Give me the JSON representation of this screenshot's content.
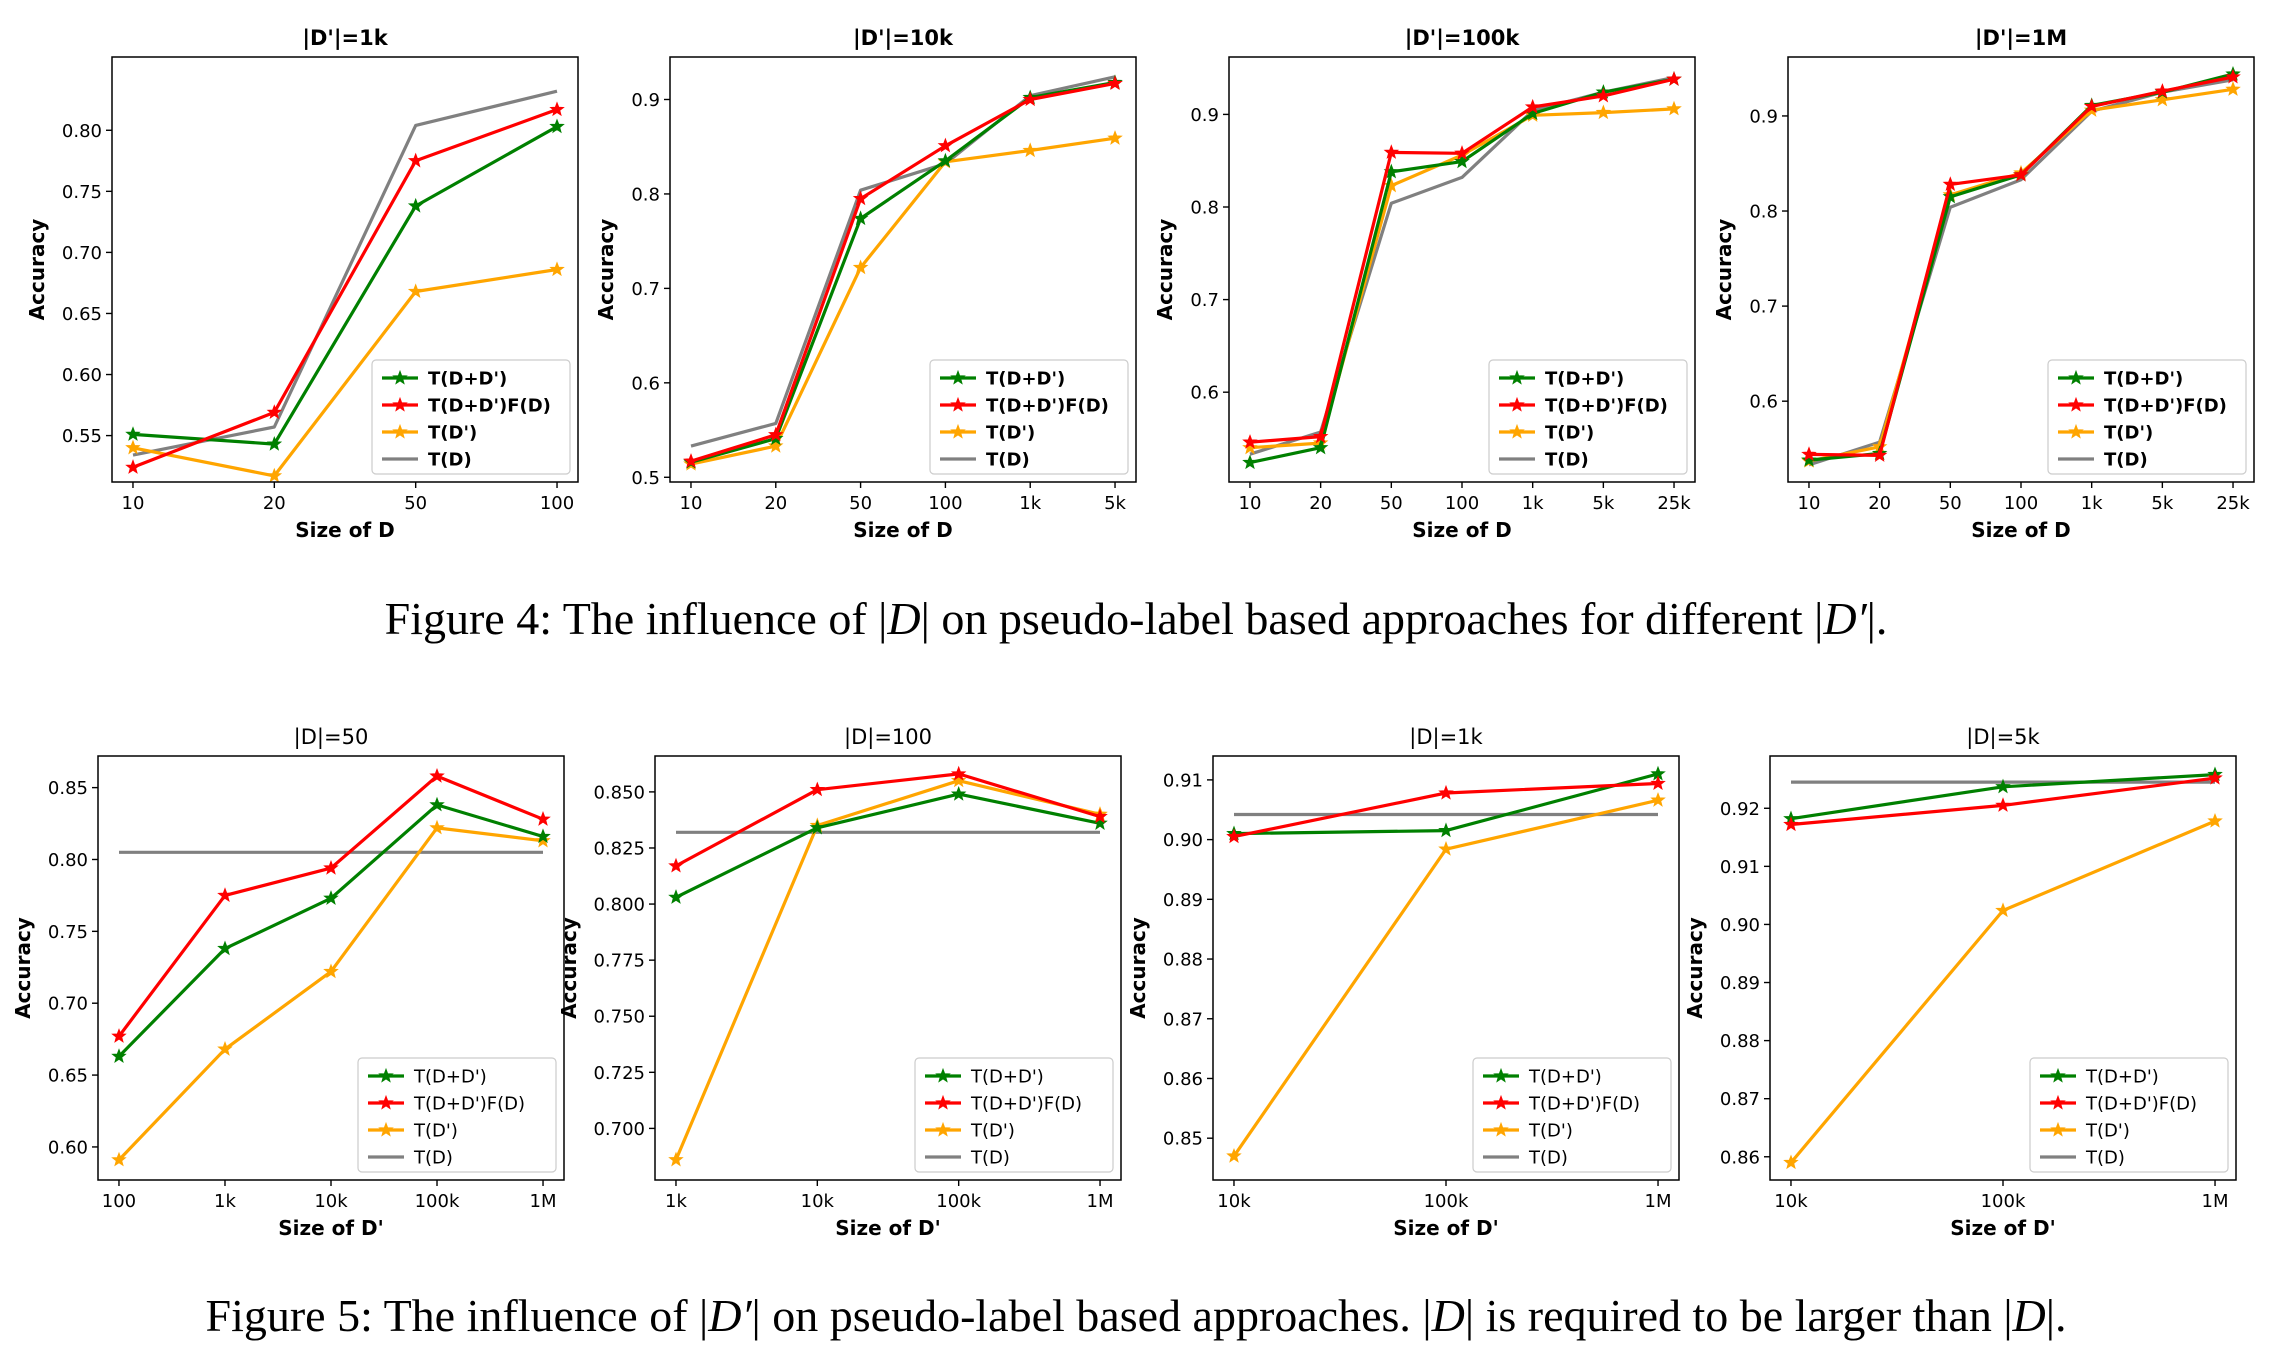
{
  "styles": {
    "colors": {
      "T(D+D')": "#008000",
      "T(D+D')F(D)": "#ff0000",
      "T(D')": "#ffa500",
      "T(D)": "#808080"
    },
    "marker": "star",
    "legend_loc": "lower-right"
  },
  "captions": {
    "fig4": {
      "lead": "Figure 4: ",
      "t1": "The influence of |",
      "v1": "D",
      "t2": "| on pseudo-label based approaches for different |",
      "v2": "D′",
      "t3": "|."
    },
    "fig5": {
      "lead": "Figure 5: ",
      "t1": "The influence of |",
      "v1": "D′",
      "t2": "| on pseudo-label based approaches. |",
      "v2": "D",
      "t3": "| is required to be larger than |",
      "v3": "D",
      "t4": "|."
    }
  },
  "chart_data": [
    {
      "type": "line",
      "title": "|D'|=1k",
      "title_bold": true,
      "xlabel": "Size of D",
      "ylabel": "Accuracy",
      "categories": [
        "10",
        "20",
        "50",
        "100"
      ],
      "ylim": [
        0.512,
        0.86
      ],
      "yticks": [
        "0.55",
        "0.60",
        "0.65",
        "0.70",
        "0.75",
        "0.80"
      ],
      "series": [
        {
          "name": "T(D+D')",
          "values": [
            0.551,
            0.543,
            0.738,
            0.803
          ]
        },
        {
          "name": "T(D+D')F(D)",
          "values": [
            0.524,
            0.569,
            0.775,
            0.817
          ]
        },
        {
          "name": "T(D')",
          "values": [
            0.54,
            0.517,
            0.668,
            0.686
          ]
        },
        {
          "name": "T(D)",
          "values": [
            0.534,
            0.557,
            0.804,
            0.832
          ]
        }
      ]
    },
    {
      "type": "line",
      "title": "|D'|=10k",
      "title_bold": true,
      "xlabel": "Size of D",
      "ylabel": "Accuracy",
      "categories": [
        "10",
        "20",
        "50",
        "100",
        "1k",
        "5k"
      ],
      "ylim": [
        0.495,
        0.945
      ],
      "yticks": [
        "0.5",
        "0.6",
        "0.7",
        "0.8",
        "0.9"
      ],
      "series": [
        {
          "name": "T(D+D')",
          "values": [
            0.516,
            0.541,
            0.774,
            0.835,
            0.902,
            0.918
          ]
        },
        {
          "name": "T(D+D')F(D)",
          "values": [
            0.517,
            0.545,
            0.795,
            0.851,
            0.9,
            0.917
          ]
        },
        {
          "name": "T(D')",
          "values": [
            0.514,
            0.533,
            0.722,
            0.834,
            0.846,
            0.859
          ]
        },
        {
          "name": "T(D)",
          "values": [
            0.533,
            0.557,
            0.804,
            0.832,
            0.904,
            0.924
          ]
        }
      ]
    },
    {
      "type": "line",
      "title": "|D'|=100k",
      "title_bold": true,
      "xlabel": "Size of D",
      "ylabel": "Accuracy",
      "categories": [
        "10",
        "20",
        "50",
        "100",
        "1k",
        "5k",
        "25k"
      ],
      "ylim": [
        0.503,
        0.962
      ],
      "yticks": [
        "0.6",
        "0.7",
        "0.8",
        "0.9"
      ],
      "series": [
        {
          "name": "T(D+D')",
          "values": [
            0.524,
            0.54,
            0.838,
            0.849,
            0.901,
            0.924,
            0.938
          ]
        },
        {
          "name": "T(D+D')F(D)",
          "values": [
            0.546,
            0.552,
            0.859,
            0.858,
            0.908,
            0.92,
            0.938
          ]
        },
        {
          "name": "T(D')",
          "values": [
            0.54,
            0.545,
            0.823,
            0.856,
            0.899,
            0.902,
            0.906
          ]
        },
        {
          "name": "T(D)",
          "values": [
            0.533,
            0.557,
            0.804,
            0.832,
            0.904,
            0.924,
            0.94
          ]
        }
      ]
    },
    {
      "type": "line",
      "title": "|D'|=1M",
      "title_bold": true,
      "xlabel": "Size of D",
      "ylabel": "Accuracy",
      "categories": [
        "10",
        "20",
        "50",
        "100",
        "1k",
        "5k",
        "25k"
      ],
      "ylim": [
        0.515,
        0.962
      ],
      "yticks": [
        "0.6",
        "0.7",
        "0.8",
        "0.9"
      ],
      "series": [
        {
          "name": "T(D+D')",
          "values": [
            0.538,
            0.545,
            0.815,
            0.838,
            0.911,
            0.925,
            0.944
          ]
        },
        {
          "name": "T(D+D')F(D)",
          "values": [
            0.544,
            0.543,
            0.828,
            0.838,
            0.91,
            0.926,
            0.941
          ]
        },
        {
          "name": "T(D')",
          "values": [
            0.537,
            0.552,
            0.817,
            0.84,
            0.906,
            0.917,
            0.928
          ]
        },
        {
          "name": "T(D)",
          "values": [
            0.533,
            0.557,
            0.804,
            0.833,
            0.905,
            0.925,
            0.938
          ]
        }
      ]
    },
    {
      "type": "line",
      "title": "|D|=50",
      "title_bold": false,
      "xlabel": "Size of D'",
      "ylabel": "Accuracy",
      "categories": [
        "100",
        "1k",
        "10k",
        "100k",
        "1M"
      ],
      "ylim": [
        0.577,
        0.872
      ],
      "yticks": [
        "0.60",
        "0.65",
        "0.70",
        "0.75",
        "0.80",
        "0.85"
      ],
      "series": [
        {
          "name": "T(D+D')",
          "values": [
            0.663,
            0.738,
            0.773,
            0.838,
            0.816
          ]
        },
        {
          "name": "T(D+D')F(D)",
          "values": [
            0.677,
            0.775,
            0.794,
            0.858,
            0.828
          ]
        },
        {
          "name": "T(D')",
          "values": [
            0.591,
            0.668,
            0.722,
            0.822,
            0.813
          ]
        },
        {
          "name": "T(D)",
          "values": [
            0.805,
            0.805,
            0.805,
            0.805,
            0.805
          ]
        }
      ]
    },
    {
      "type": "line",
      "title": "|D|=100",
      "title_bold": false,
      "xlabel": "Size of D'",
      "ylabel": "Accuracy",
      "categories": [
        "1k",
        "10k",
        "100k",
        "1M"
      ],
      "ylim": [
        0.677,
        0.866
      ],
      "yticks": [
        "0.700",
        "0.725",
        "0.750",
        "0.775",
        "0.800",
        "0.825",
        "0.850"
      ],
      "series": [
        {
          "name": "T(D+D')",
          "values": [
            0.803,
            0.834,
            0.849,
            0.836
          ]
        },
        {
          "name": "T(D+D')F(D)",
          "values": [
            0.817,
            0.851,
            0.858,
            0.839
          ]
        },
        {
          "name": "T(D')",
          "values": [
            0.686,
            0.835,
            0.855,
            0.84
          ]
        },
        {
          "name": "T(D)",
          "values": [
            0.832,
            0.832,
            0.832,
            0.832
          ]
        }
      ]
    },
    {
      "type": "line",
      "title": "|D|=1k",
      "title_bold": false,
      "xlabel": "Size of D'",
      "ylabel": "Accuracy",
      "categories": [
        "10k",
        "100k",
        "1M"
      ],
      "ylim": [
        0.843,
        0.914
      ],
      "yticks": [
        "0.85",
        "0.86",
        "0.87",
        "0.88",
        "0.89",
        "0.90",
        "0.91"
      ],
      "series": [
        {
          "name": "T(D+D')",
          "values": [
            0.901,
            0.9015,
            0.911
          ]
        },
        {
          "name": "T(D+D')F(D)",
          "values": [
            0.9005,
            0.9078,
            0.9094
          ]
        },
        {
          "name": "T(D')",
          "values": [
            0.847,
            0.8984,
            0.9066
          ]
        },
        {
          "name": "T(D)",
          "values": [
            0.9042,
            0.9042,
            0.9042
          ]
        }
      ]
    },
    {
      "type": "line",
      "title": "|D|=5k",
      "title_bold": false,
      "xlabel": "Size of D'",
      "ylabel": "Accuracy",
      "categories": [
        "10k",
        "100k",
        "1M"
      ],
      "ylim": [
        0.856,
        0.929
      ],
      "yticks": [
        "0.86",
        "0.87",
        "0.88",
        "0.89",
        "0.90",
        "0.91",
        "0.92"
      ],
      "series": [
        {
          "name": "T(D+D')",
          "values": [
            0.9182,
            0.9237,
            0.9258
          ]
        },
        {
          "name": "T(D+D')F(D)",
          "values": [
            0.9172,
            0.9205,
            0.9252
          ]
        },
        {
          "name": "T(D')",
          "values": [
            0.859,
            0.9024,
            0.9178
          ]
        },
        {
          "name": "T(D)",
          "values": [
            0.9245,
            0.9245,
            0.9245
          ]
        }
      ]
    }
  ]
}
